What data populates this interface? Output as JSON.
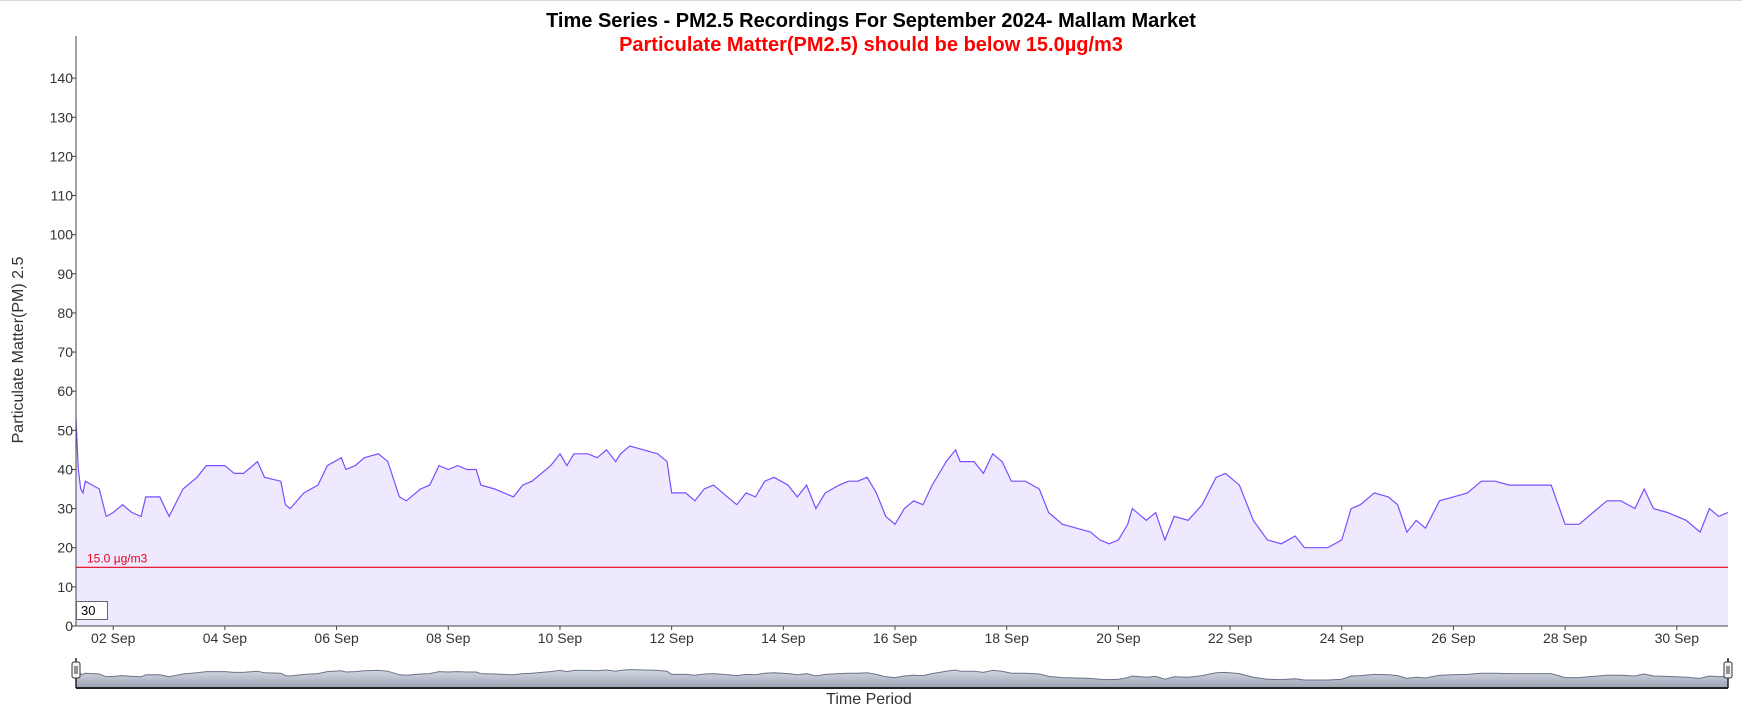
{
  "chart_data": {
    "type": "area",
    "title": "Time Series - PM2.5 Recordings For September 2024- Mallam Market",
    "subtitle": "Particulate Matter(PM2.5) should be below 15.0µg/m3",
    "ylabel": "Particulate Matter(PM) 2.5",
    "xlabel": "Time Period",
    "ylim": [
      0,
      150
    ],
    "yticks": [
      0,
      10,
      20,
      30,
      40,
      50,
      60,
      70,
      80,
      90,
      100,
      110,
      120,
      130,
      140
    ],
    "xlim": [
      "2024-09-01T08:00",
      "2024-09-30T22:00"
    ],
    "xtick_labels": [
      "02 Sep",
      "04 Sep",
      "06 Sep",
      "08 Sep",
      "10 Sep",
      "12 Sep",
      "14 Sep",
      "16 Sep",
      "18 Sep",
      "20 Sep",
      "22 Sep",
      "24 Sep",
      "26 Sep",
      "28 Sep",
      "30 Sep"
    ],
    "xtick_dates": [
      "2024-09-02",
      "2024-09-04",
      "2024-09-06",
      "2024-09-08",
      "2024-09-10",
      "2024-09-12",
      "2024-09-14",
      "2024-09-16",
      "2024-09-18",
      "2024-09-20",
      "2024-09-22",
      "2024-09-24",
      "2024-09-26",
      "2024-09-28",
      "2024-09-30"
    ],
    "threshold": {
      "value": 15.0,
      "label": "15.0 µg/m3",
      "color": "#e8001c"
    },
    "line_color": "#7b4dff",
    "fill_color": "#efe9ff",
    "grid": false,
    "series": [
      {
        "points": [
          [
            "2024-09-01T08:00",
            53
          ],
          [
            "2024-09-01T09:00",
            40
          ],
          [
            "2024-09-01T10:00",
            35
          ],
          [
            "2024-09-01T11:00",
            34
          ],
          [
            "2024-09-01T12:00",
            37
          ],
          [
            "2024-09-01T15:00",
            36
          ],
          [
            "2024-09-01T18:00",
            35
          ],
          [
            "2024-09-01T21:00",
            28
          ],
          [
            "2024-09-02T00:00",
            29
          ],
          [
            "2024-09-02T04:00",
            31
          ],
          [
            "2024-09-02T08:00",
            29
          ],
          [
            "2024-09-02T12:00",
            28
          ],
          [
            "2024-09-02T14:00",
            33
          ],
          [
            "2024-09-02T20:00",
            33
          ],
          [
            "2024-09-03T00:00",
            28
          ],
          [
            "2024-09-03T06:00",
            35
          ],
          [
            "2024-09-03T12:00",
            38
          ],
          [
            "2024-09-03T16:00",
            41
          ],
          [
            "2024-09-04T00:00",
            41
          ],
          [
            "2024-09-04T04:00",
            39
          ],
          [
            "2024-09-04T08:00",
            39
          ],
          [
            "2024-09-04T14:00",
            42
          ],
          [
            "2024-09-04T17:00",
            38
          ],
          [
            "2024-09-05T00:00",
            37
          ],
          [
            "2024-09-05T02:00",
            31
          ],
          [
            "2024-09-05T04:00",
            30
          ],
          [
            "2024-09-05T10:00",
            34
          ],
          [
            "2024-09-05T16:00",
            36
          ],
          [
            "2024-09-05T20:00",
            41
          ],
          [
            "2024-09-06T02:00",
            43
          ],
          [
            "2024-09-06T04:00",
            40
          ],
          [
            "2024-09-06T08:00",
            41
          ],
          [
            "2024-09-06T12:00",
            43
          ],
          [
            "2024-09-06T18:00",
            44
          ],
          [
            "2024-09-06T22:00",
            42
          ],
          [
            "2024-09-07T03:00",
            33
          ],
          [
            "2024-09-07T06:00",
            32
          ],
          [
            "2024-09-07T12:00",
            35
          ],
          [
            "2024-09-07T16:00",
            36
          ],
          [
            "2024-09-07T20:00",
            41
          ],
          [
            "2024-09-08T00:00",
            40
          ],
          [
            "2024-09-08T04:00",
            41
          ],
          [
            "2024-09-08T08:00",
            40
          ],
          [
            "2024-09-08T12:00",
            40
          ],
          [
            "2024-09-08T14:00",
            36
          ],
          [
            "2024-09-08T20:00",
            35
          ],
          [
            "2024-09-09T00:00",
            34
          ],
          [
            "2024-09-09T04:00",
            33
          ],
          [
            "2024-09-09T08:00",
            36
          ],
          [
            "2024-09-09T12:00",
            37
          ],
          [
            "2024-09-09T16:00",
            39
          ],
          [
            "2024-09-09T20:00",
            41
          ],
          [
            "2024-09-10T00:00",
            44
          ],
          [
            "2024-09-10T03:00",
            41
          ],
          [
            "2024-09-10T06:00",
            44
          ],
          [
            "2024-09-10T12:00",
            44
          ],
          [
            "2024-09-10T16:00",
            43
          ],
          [
            "2024-09-10T20:00",
            45
          ],
          [
            "2024-09-11T00:00",
            42
          ],
          [
            "2024-09-11T02:00",
            44
          ],
          [
            "2024-09-11T06:00",
            46
          ],
          [
            "2024-09-11T12:00",
            45
          ],
          [
            "2024-09-11T18:00",
            44
          ],
          [
            "2024-09-11T22:00",
            42
          ],
          [
            "2024-09-12T00:00",
            34
          ],
          [
            "2024-09-12T06:00",
            34
          ],
          [
            "2024-09-12T10:00",
            32
          ],
          [
            "2024-09-12T14:00",
            35
          ],
          [
            "2024-09-12T18:00",
            36
          ],
          [
            "2024-09-13T00:00",
            33
          ],
          [
            "2024-09-13T04:00",
            31
          ],
          [
            "2024-09-13T08:00",
            34
          ],
          [
            "2024-09-13T12:00",
            33
          ],
          [
            "2024-09-13T16:00",
            37
          ],
          [
            "2024-09-13T20:00",
            38
          ],
          [
            "2024-09-14T02:00",
            36
          ],
          [
            "2024-09-14T06:00",
            33
          ],
          [
            "2024-09-14T10:00",
            36
          ],
          [
            "2024-09-14T14:00",
            30
          ],
          [
            "2024-09-14T18:00",
            34
          ],
          [
            "2024-09-15T00:00",
            36
          ],
          [
            "2024-09-15T04:00",
            37
          ],
          [
            "2024-09-15T08:00",
            37
          ],
          [
            "2024-09-15T12:00",
            38
          ],
          [
            "2024-09-15T16:00",
            34
          ],
          [
            "2024-09-15T20:00",
            28
          ],
          [
            "2024-09-16T00:00",
            26
          ],
          [
            "2024-09-16T04:00",
            30
          ],
          [
            "2024-09-16T08:00",
            32
          ],
          [
            "2024-09-16T12:00",
            31
          ],
          [
            "2024-09-16T16:00",
            36
          ],
          [
            "2024-09-16T22:00",
            42
          ],
          [
            "2024-09-17T02:00",
            45
          ],
          [
            "2024-09-17T04:00",
            42
          ],
          [
            "2024-09-17T10:00",
            42
          ],
          [
            "2024-09-17T14:00",
            39
          ],
          [
            "2024-09-17T18:00",
            44
          ],
          [
            "2024-09-17T22:00",
            42
          ],
          [
            "2024-09-18T02:00",
            37
          ],
          [
            "2024-09-18T08:00",
            37
          ],
          [
            "2024-09-18T14:00",
            35
          ],
          [
            "2024-09-18T18:00",
            29
          ],
          [
            "2024-09-19T00:00",
            26
          ],
          [
            "2024-09-19T06:00",
            25
          ],
          [
            "2024-09-19T12:00",
            24
          ],
          [
            "2024-09-19T16:00",
            22
          ],
          [
            "2024-09-19T20:00",
            21
          ],
          [
            "2024-09-20T00:00",
            22
          ],
          [
            "2024-09-20T04:00",
            26
          ],
          [
            "2024-09-20T06:00",
            30
          ],
          [
            "2024-09-20T12:00",
            27
          ],
          [
            "2024-09-20T16:00",
            29
          ],
          [
            "2024-09-20T20:00",
            22
          ],
          [
            "2024-09-21T00:00",
            28
          ],
          [
            "2024-09-21T06:00",
            27
          ],
          [
            "2024-09-21T12:00",
            31
          ],
          [
            "2024-09-21T18:00",
            38
          ],
          [
            "2024-09-21T22:00",
            39
          ],
          [
            "2024-09-22T04:00",
            36
          ],
          [
            "2024-09-22T10:00",
            27
          ],
          [
            "2024-09-22T16:00",
            22
          ],
          [
            "2024-09-22T22:00",
            21
          ],
          [
            "2024-09-23T04:00",
            23
          ],
          [
            "2024-09-23T08:00",
            20
          ],
          [
            "2024-09-23T12:00",
            20
          ],
          [
            "2024-09-23T18:00",
            20
          ],
          [
            "2024-09-24T00:00",
            22
          ],
          [
            "2024-09-24T04:00",
            30
          ],
          [
            "2024-09-24T08:00",
            31
          ],
          [
            "2024-09-24T14:00",
            34
          ],
          [
            "2024-09-24T20:00",
            33
          ],
          [
            "2024-09-25T00:00",
            31
          ],
          [
            "2024-09-25T04:00",
            24
          ],
          [
            "2024-09-25T08:00",
            27
          ],
          [
            "2024-09-25T12:00",
            25
          ],
          [
            "2024-09-25T18:00",
            32
          ],
          [
            "2024-09-26T00:00",
            33
          ],
          [
            "2024-09-26T06:00",
            34
          ],
          [
            "2024-09-26T12:00",
            37
          ],
          [
            "2024-09-26T18:00",
            37
          ],
          [
            "2024-09-27T00:00",
            36
          ],
          [
            "2024-09-27T06:00",
            36
          ],
          [
            "2024-09-27T12:00",
            36
          ],
          [
            "2024-09-27T18:00",
            36
          ],
          [
            "2024-09-28T00:00",
            26
          ],
          [
            "2024-09-28T06:00",
            26
          ],
          [
            "2024-09-28T12:00",
            29
          ],
          [
            "2024-09-28T18:00",
            32
          ],
          [
            "2024-09-29T00:00",
            32
          ],
          [
            "2024-09-29T06:00",
            30
          ],
          [
            "2024-09-29T10:00",
            35
          ],
          [
            "2024-09-29T14:00",
            30
          ],
          [
            "2024-09-29T20:00",
            29
          ],
          [
            "2024-09-30T04:00",
            27
          ],
          [
            "2024-09-30T10:00",
            24
          ],
          [
            "2024-09-30T14:00",
            30
          ],
          [
            "2024-09-30T18:00",
            28
          ],
          [
            "2024-09-30T22:00",
            29
          ]
        ]
      }
    ],
    "rolling_period": "30"
  }
}
